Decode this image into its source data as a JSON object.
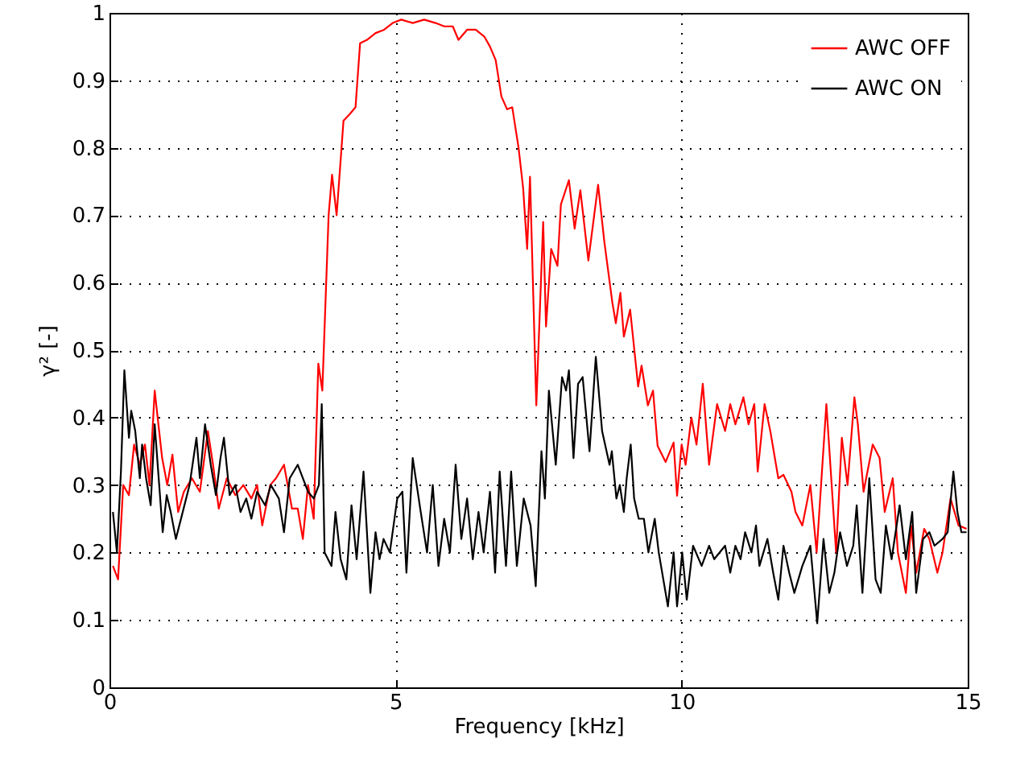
{
  "chart_data": {
    "type": "line",
    "xlabel": "Frequency [kHz]",
    "ylabel": "γ² [-]",
    "xlim": [
      0,
      15
    ],
    "ylim": [
      0,
      1
    ],
    "xticks": [
      0,
      5,
      10,
      15
    ],
    "yticks": [
      0,
      0.1,
      0.2,
      0.3,
      0.4,
      0.5,
      0.6,
      0.7,
      0.8,
      0.9,
      1
    ],
    "grid": true,
    "legend": "top right",
    "line_style": "solid",
    "marker": "none",
    "series": [
      {
        "name": "AWC OFF",
        "color": "#ff0000",
        "x": [
          0.06,
          0.15,
          0.24,
          0.34,
          0.43,
          0.53,
          0.62,
          0.7,
          0.79,
          0.92,
          1.01,
          1.1,
          1.2,
          1.3,
          1.44,
          1.58,
          1.72,
          1.81,
          1.91,
          2.05,
          2.2,
          2.34,
          2.48,
          2.58,
          2.67,
          2.81,
          2.91,
          3.05,
          3.19,
          3.29,
          3.38,
          3.47,
          3.57,
          3.65,
          3.72,
          3.83,
          3.89,
          3.97,
          4.09,
          4.2,
          4.3,
          4.38,
          4.5,
          4.65,
          4.8,
          4.95,
          5.1,
          5.3,
          5.5,
          5.7,
          5.85,
          6.0,
          6.1,
          6.25,
          6.4,
          6.55,
          6.65,
          6.75,
          6.85,
          6.95,
          7.04,
          7.15,
          7.23,
          7.3,
          7.35,
          7.46,
          7.58,
          7.63,
          7.72,
          7.83,
          7.89,
          8.03,
          8.13,
          8.23,
          8.37,
          8.54,
          8.65,
          8.79,
          8.85,
          8.93,
          8.99,
          9.1,
          9.24,
          9.3,
          9.41,
          9.5,
          9.58,
          9.72,
          9.86,
          9.92,
          10.0,
          10.07,
          10.17,
          10.26,
          10.37,
          10.48,
          10.62,
          10.76,
          10.85,
          10.94,
          11.08,
          11.17,
          11.27,
          11.33,
          11.45,
          11.55,
          11.69,
          11.78,
          11.92,
          11.99,
          12.11,
          12.25,
          12.36,
          12.53,
          12.7,
          12.8,
          12.9,
          13.02,
          13.08,
          13.18,
          13.34,
          13.46,
          13.55,
          13.69,
          13.78,
          13.92,
          14.01,
          14.1,
          14.24,
          14.33,
          14.47,
          14.56,
          14.7,
          14.84,
          14.98
        ],
        "values": [
          0.18,
          0.16,
          0.3,
          0.285,
          0.36,
          0.33,
          0.36,
          0.3,
          0.44,
          0.34,
          0.3,
          0.345,
          0.26,
          0.29,
          0.31,
          0.29,
          0.38,
          0.33,
          0.265,
          0.31,
          0.285,
          0.3,
          0.28,
          0.3,
          0.24,
          0.3,
          0.31,
          0.33,
          0.265,
          0.265,
          0.22,
          0.3,
          0.25,
          0.48,
          0.44,
          0.7,
          0.76,
          0.7,
          0.84,
          0.85,
          0.86,
          0.955,
          0.96,
          0.97,
          0.975,
          0.985,
          0.99,
          0.985,
          0.99,
          0.985,
          0.98,
          0.98,
          0.96,
          0.975,
          0.975,
          0.965,
          0.95,
          0.93,
          0.876,
          0.857,
          0.86,
          0.8,
          0.74,
          0.65,
          0.757,
          0.418,
          0.69,
          0.535,
          0.65,
          0.625,
          0.716,
          0.752,
          0.68,
          0.737,
          0.633,
          0.745,
          0.66,
          0.57,
          0.54,
          0.585,
          0.52,
          0.56,
          0.446,
          0.477,
          0.418,
          0.44,
          0.358,
          0.334,
          0.363,
          0.284,
          0.36,
          0.33,
          0.4,
          0.36,
          0.45,
          0.33,
          0.42,
          0.38,
          0.42,
          0.39,
          0.43,
          0.39,
          0.42,
          0.32,
          0.42,
          0.38,
          0.31,
          0.315,
          0.29,
          0.26,
          0.24,
          0.3,
          0.2,
          0.42,
          0.2,
          0.37,
          0.3,
          0.43,
          0.39,
          0.29,
          0.36,
          0.34,
          0.26,
          0.31,
          0.2,
          0.14,
          0.24,
          0.17,
          0.235,
          0.22,
          0.17,
          0.2,
          0.28,
          0.24,
          0.235
        ]
      },
      {
        "name": "AWC ON",
        "color": "#000000",
        "x": [
          0.06,
          0.13,
          0.2,
          0.26,
          0.34,
          0.38,
          0.45,
          0.53,
          0.57,
          0.64,
          0.72,
          0.79,
          0.86,
          0.93,
          1.0,
          1.07,
          1.16,
          1.28,
          1.4,
          1.52,
          1.58,
          1.67,
          1.77,
          1.86,
          1.94,
          2.0,
          2.1,
          2.2,
          2.29,
          2.39,
          2.48,
          2.58,
          2.72,
          2.82,
          2.96,
          3.05,
          3.15,
          3.29,
          3.38,
          3.47,
          3.57,
          3.66,
          3.71,
          3.76,
          3.88,
          3.95,
          4.04,
          4.14,
          4.23,
          4.32,
          4.44,
          4.56,
          4.65,
          4.72,
          4.79,
          4.9,
          5.03,
          5.12,
          5.19,
          5.3,
          5.44,
          5.55,
          5.65,
          5.75,
          5.85,
          5.95,
          6.05,
          6.15,
          6.25,
          6.35,
          6.45,
          6.54,
          6.65,
          6.74,
          6.82,
          6.93,
          7.02,
          7.12,
          7.24,
          7.36,
          7.45,
          7.55,
          7.61,
          7.68,
          7.8,
          7.91,
          7.98,
          8.03,
          8.11,
          8.19,
          8.27,
          8.39,
          8.5,
          8.61,
          8.74,
          8.78,
          8.86,
          8.92,
          8.99,
          9.04,
          9.11,
          9.17,
          9.25,
          9.34,
          9.42,
          9.53,
          9.6,
          9.76,
          9.86,
          9.92,
          10.01,
          10.09,
          10.2,
          10.35,
          10.48,
          10.57,
          10.76,
          10.85,
          10.94,
          11.03,
          11.11,
          11.22,
          11.3,
          11.36,
          11.5,
          11.6,
          11.69,
          11.78,
          11.88,
          11.97,
          12.11,
          12.25,
          12.37,
          12.48,
          12.58,
          12.67,
          12.77,
          12.89,
          13.0,
          13.06,
          13.16,
          13.28,
          13.39,
          13.48,
          13.57,
          13.67,
          13.81,
          13.92,
          14.03,
          14.1,
          14.22,
          14.33,
          14.42,
          14.56,
          14.65,
          14.75,
          14.82,
          14.89,
          14.98
        ],
        "values": [
          0.26,
          0.2,
          0.32,
          0.47,
          0.37,
          0.41,
          0.38,
          0.31,
          0.36,
          0.31,
          0.27,
          0.39,
          0.31,
          0.23,
          0.285,
          0.26,
          0.22,
          0.26,
          0.3,
          0.37,
          0.31,
          0.39,
          0.33,
          0.285,
          0.34,
          0.37,
          0.285,
          0.3,
          0.26,
          0.28,
          0.25,
          0.29,
          0.27,
          0.3,
          0.28,
          0.23,
          0.31,
          0.33,
          0.31,
          0.29,
          0.28,
          0.3,
          0.42,
          0.2,
          0.18,
          0.26,
          0.19,
          0.16,
          0.27,
          0.19,
          0.32,
          0.14,
          0.23,
          0.19,
          0.22,
          0.2,
          0.28,
          0.29,
          0.17,
          0.34,
          0.26,
          0.2,
          0.3,
          0.18,
          0.25,
          0.2,
          0.33,
          0.22,
          0.28,
          0.19,
          0.26,
          0.2,
          0.29,
          0.17,
          0.32,
          0.18,
          0.32,
          0.18,
          0.28,
          0.24,
          0.15,
          0.35,
          0.28,
          0.44,
          0.33,
          0.46,
          0.44,
          0.47,
          0.34,
          0.45,
          0.46,
          0.35,
          0.49,
          0.38,
          0.33,
          0.35,
          0.28,
          0.3,
          0.26,
          0.31,
          0.36,
          0.28,
          0.25,
          0.25,
          0.2,
          0.25,
          0.2,
          0.12,
          0.2,
          0.12,
          0.2,
          0.13,
          0.21,
          0.18,
          0.21,
          0.19,
          0.21,
          0.17,
          0.21,
          0.19,
          0.23,
          0.2,
          0.24,
          0.18,
          0.22,
          0.17,
          0.13,
          0.21,
          0.17,
          0.14,
          0.18,
          0.21,
          0.095,
          0.22,
          0.14,
          0.17,
          0.23,
          0.18,
          0.21,
          0.27,
          0.14,
          0.31,
          0.16,
          0.14,
          0.24,
          0.19,
          0.27,
          0.19,
          0.26,
          0.14,
          0.22,
          0.23,
          0.21,
          0.22,
          0.23,
          0.32,
          0.26,
          0.23,
          0.23
        ]
      }
    ]
  }
}
